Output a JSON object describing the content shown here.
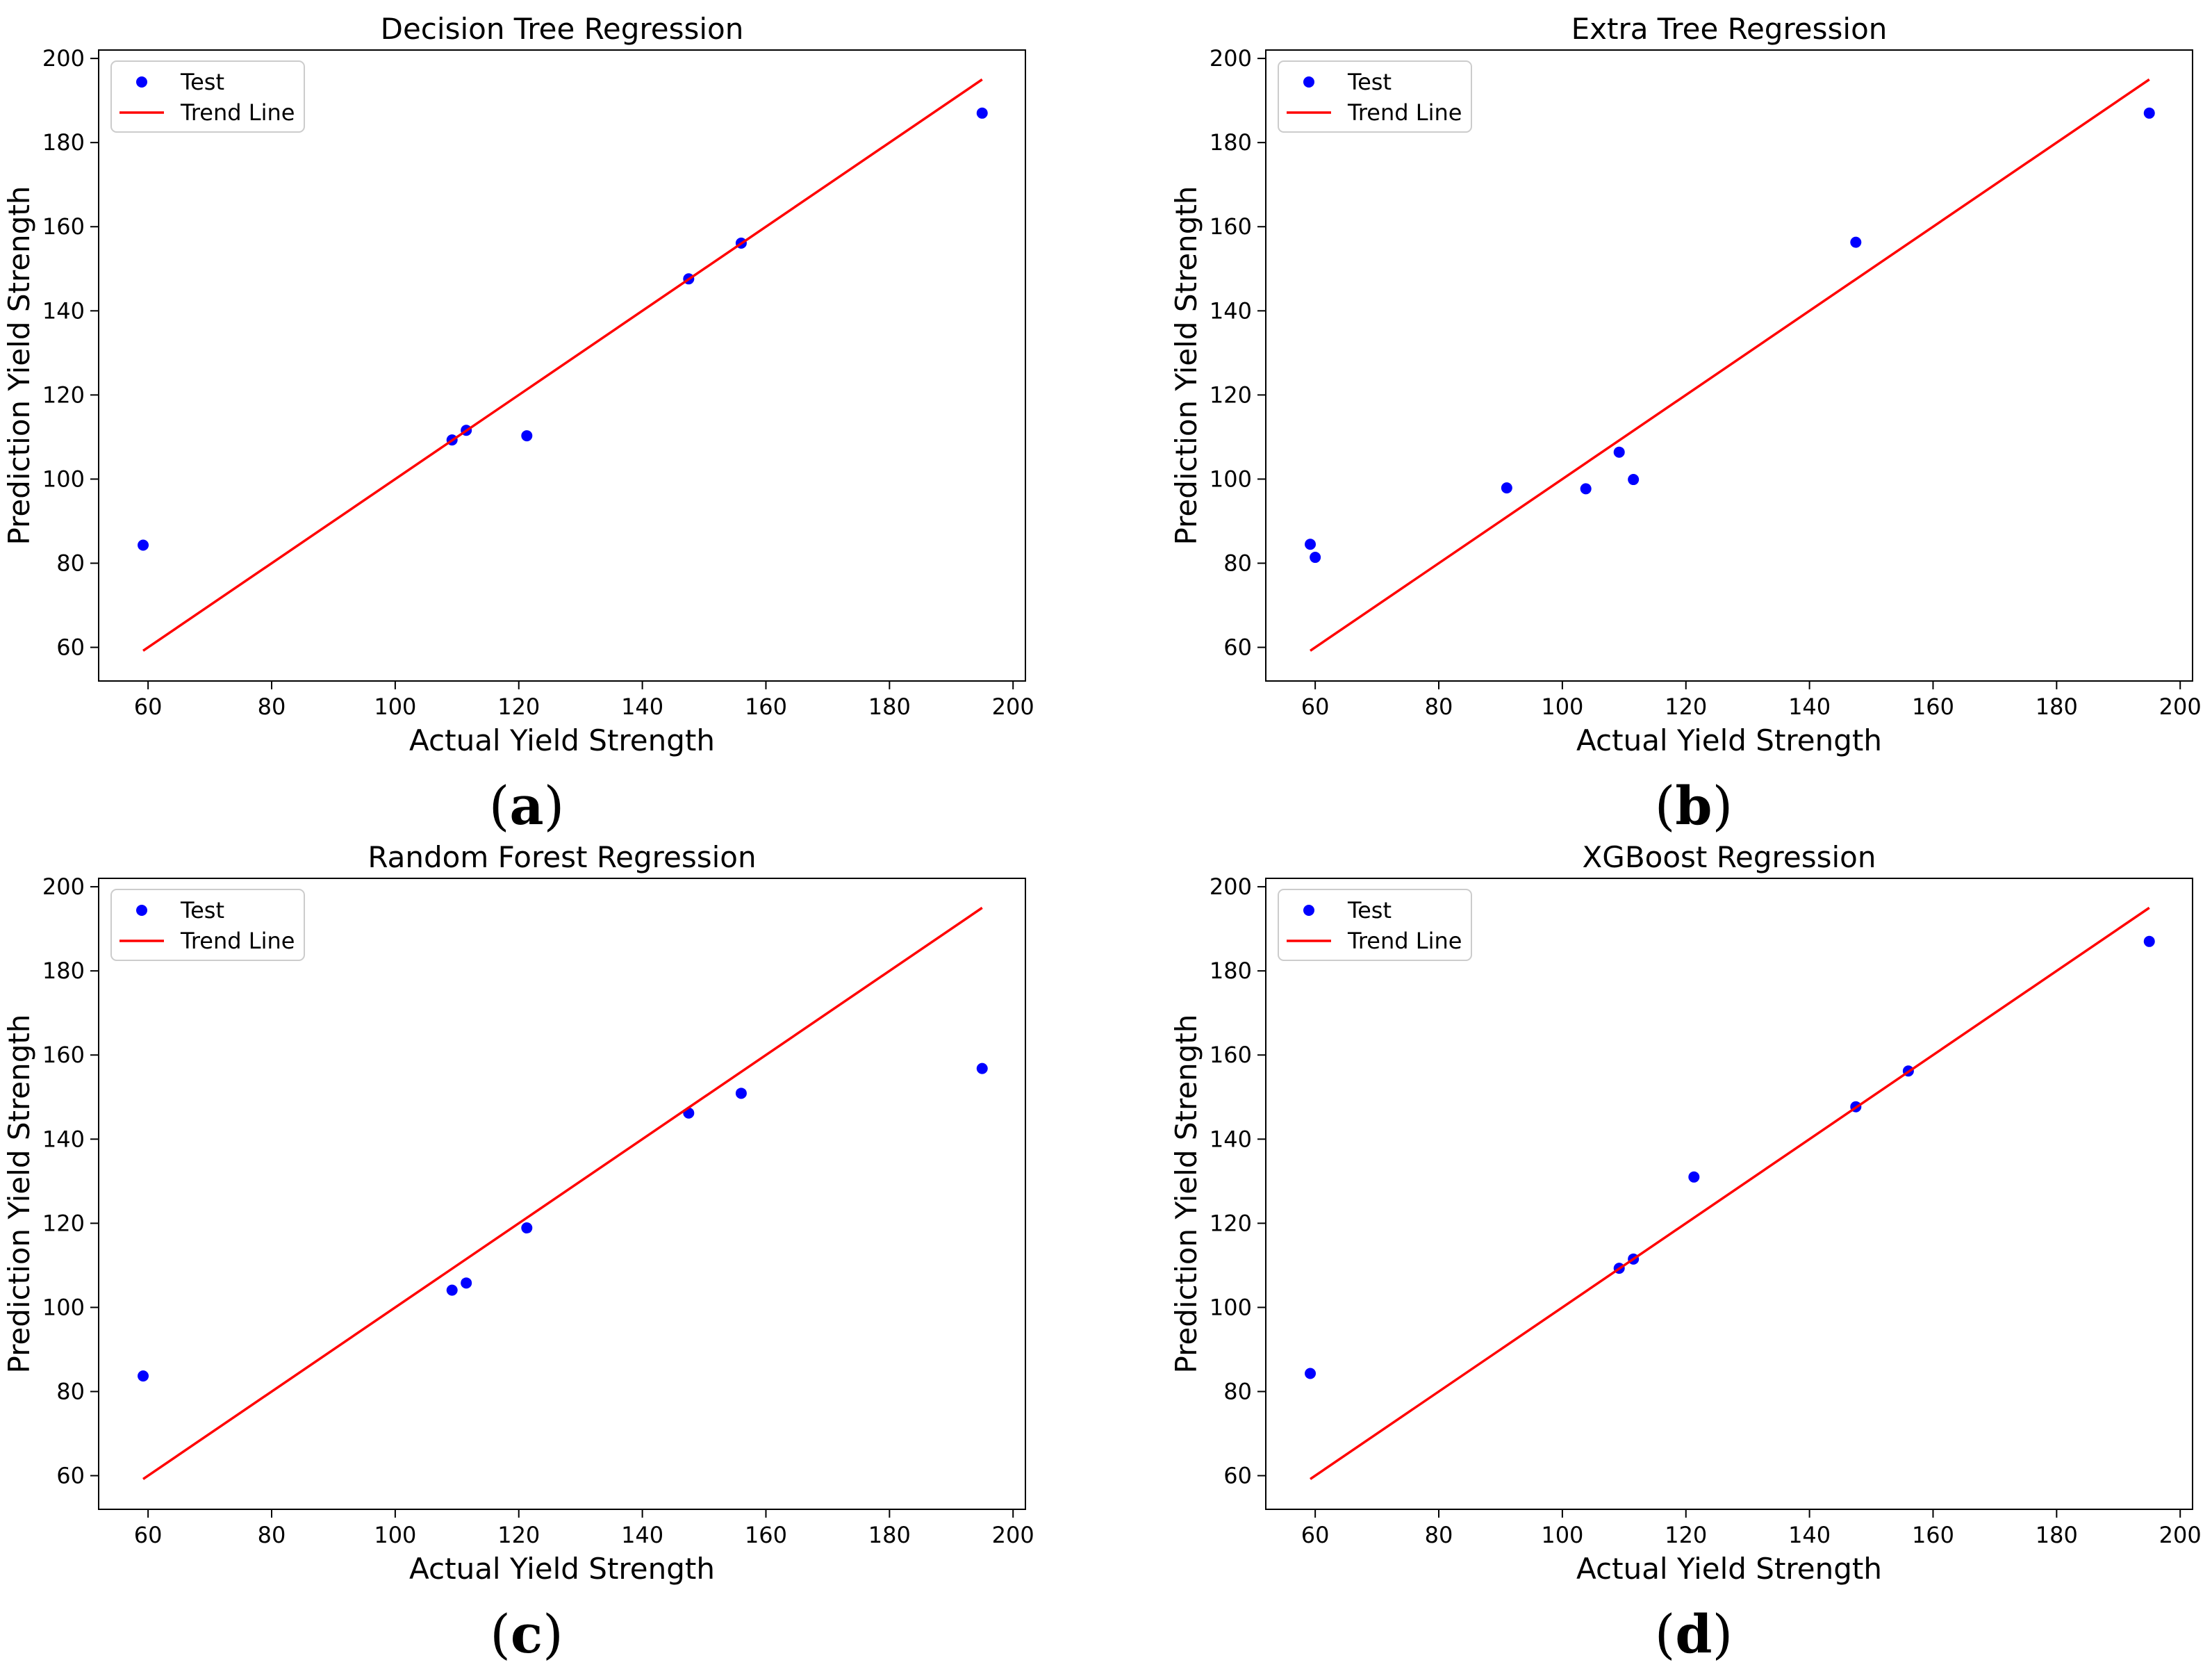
{
  "chart_data": [
    {
      "type": "scatter",
      "title": "Decision Tree Regression",
      "xlabel": "Actual Yield Strength",
      "ylabel": "Prediction Yield Strength",
      "caption_open": "(",
      "caption_letter": "a",
      "caption_close": ")",
      "xlim": [
        52,
        202
      ],
      "ylim": [
        52,
        202
      ],
      "xticks": [
        60,
        80,
        100,
        120,
        140,
        160,
        180,
        200
      ],
      "yticks": [
        60,
        80,
        100,
        120,
        140,
        160,
        180,
        200
      ],
      "legend": {
        "location": "upper-left",
        "entries": [
          "Test",
          "Trend Line"
        ]
      },
      "series": [
        {
          "name": "Test",
          "kind": "scatter",
          "color": "#0000ff",
          "x": [
            59.2,
            109.2,
            111.5,
            121.3,
            147.5,
            156.0,
            195.0
          ],
          "y": [
            84.3,
            109.3,
            111.6,
            110.3,
            147.6,
            156.1,
            187.0
          ]
        },
        {
          "name": "Trend Line",
          "kind": "line",
          "color": "#ff0000",
          "x": [
            59.2,
            195.0
          ],
          "y": [
            59.2,
            195.0
          ]
        }
      ]
    },
    {
      "type": "scatter",
      "title": "Extra Tree Regression",
      "xlabel": "Actual Yield Strength",
      "ylabel": "Prediction Yield Strength",
      "caption_open": "(",
      "caption_letter": "b",
      "caption_close": ")",
      "xlim": [
        52,
        202
      ],
      "ylim": [
        52,
        202
      ],
      "xticks": [
        60,
        80,
        100,
        120,
        140,
        160,
        180,
        200
      ],
      "yticks": [
        60,
        80,
        100,
        120,
        140,
        160,
        180,
        200
      ],
      "legend": {
        "location": "upper-left",
        "entries": [
          "Test",
          "Trend Line"
        ]
      },
      "series": [
        {
          "name": "Test",
          "kind": "scatter",
          "color": "#0000ff",
          "x": [
            59.2,
            60.0,
            91.0,
            103.8,
            109.2,
            111.5,
            147.5,
            195.0
          ],
          "y": [
            84.5,
            81.4,
            97.9,
            97.7,
            106.4,
            99.9,
            156.3,
            187.0
          ]
        },
        {
          "name": "Trend Line",
          "kind": "line",
          "color": "#ff0000",
          "x": [
            59.2,
            195.0
          ],
          "y": [
            59.2,
            195.0
          ]
        }
      ]
    },
    {
      "type": "scatter",
      "title": "Random Forest Regression",
      "xlabel": "Actual Yield Strength",
      "ylabel": "Prediction Yield Strength",
      "caption_open": "(",
      "caption_letter": "c",
      "caption_close": ")",
      "xlim": [
        52,
        202
      ],
      "ylim": [
        52,
        202
      ],
      "xticks": [
        60,
        80,
        100,
        120,
        140,
        160,
        180,
        200
      ],
      "yticks": [
        60,
        80,
        100,
        120,
        140,
        160,
        180,
        200
      ],
      "legend": {
        "location": "upper-left",
        "entries": [
          "Test",
          "Trend Line"
        ]
      },
      "series": [
        {
          "name": "Test",
          "kind": "scatter",
          "color": "#0000ff",
          "x": [
            59.2,
            109.2,
            111.5,
            121.3,
            147.5,
            156.0,
            195.0
          ],
          "y": [
            83.7,
            104.1,
            105.8,
            118.9,
            146.2,
            150.9,
            156.8
          ]
        },
        {
          "name": "Trend Line",
          "kind": "line",
          "color": "#ff0000",
          "x": [
            59.2,
            195.0
          ],
          "y": [
            59.2,
            195.0
          ]
        }
      ]
    },
    {
      "type": "scatter",
      "title": "XGBoost Regression",
      "xlabel": "Actual Yield Strength",
      "ylabel": "Prediction Yield Strength",
      "caption_open": "(",
      "caption_letter": "d",
      "caption_close": ")",
      "xlim": [
        52,
        202
      ],
      "ylim": [
        52,
        202
      ],
      "xticks": [
        60,
        80,
        100,
        120,
        140,
        160,
        180,
        200
      ],
      "yticks": [
        60,
        80,
        100,
        120,
        140,
        160,
        180,
        200
      ],
      "legend": {
        "location": "upper-left",
        "entries": [
          "Test",
          "Trend Line"
        ]
      },
      "series": [
        {
          "name": "Test",
          "kind": "scatter",
          "color": "#0000ff",
          "x": [
            59.2,
            109.2,
            111.5,
            121.3,
            147.5,
            156.0,
            195.0
          ],
          "y": [
            84.3,
            109.3,
            111.5,
            131.0,
            147.7,
            156.2,
            187.0
          ]
        },
        {
          "name": "Trend Line",
          "kind": "line",
          "color": "#ff0000",
          "x": [
            59.2,
            195.0
          ],
          "y": [
            59.2,
            195.0
          ]
        }
      ]
    }
  ]
}
